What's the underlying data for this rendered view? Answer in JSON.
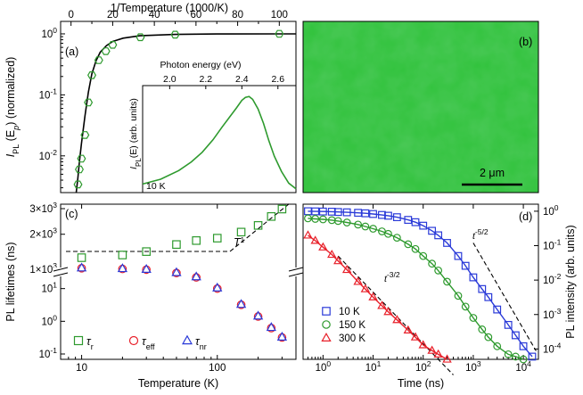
{
  "colors": {
    "green": "#2e9a2e",
    "blue": "#2a3ad8",
    "red": "#e8202a",
    "purple": "#7a30c0",
    "black": "#000000",
    "image_green": "#2fc23a"
  },
  "chart_data": [
    {
      "panel": "(a)",
      "type": "scatter",
      "xlabel": "1/Temperature (1000/K)",
      "ylabel_main": "I",
      "ylabel_sub": "PL",
      "ylabel_rest": " (E",
      "ylabel_sub2": "p",
      "ylabel_end": ") (normalized)",
      "xlim": [
        -5,
        108
      ],
      "ylim": [
        0.0025,
        1.6
      ],
      "yscale": "log",
      "xticks": [
        "0",
        "20",
        "40",
        "60",
        "80",
        "100"
      ],
      "yticks": [
        "10-2",
        "10-1",
        "100"
      ],
      "series": [
        {
          "marker": "hexagon",
          "x": [
            3.33,
            4.0,
            5.0,
            6.67,
            8.33,
            10.0,
            13.3,
            16.7,
            20.0,
            33.3,
            50.0,
            100.0
          ],
          "y": [
            0.0034,
            0.006,
            0.009,
            0.022,
            0.075,
            0.21,
            0.37,
            0.52,
            0.66,
            0.88,
            0.97,
            1.0
          ]
        }
      ],
      "fit": {
        "x": [
          2.5,
          3.3,
          4.0,
          5.0,
          6.7,
          8.3,
          10,
          12,
          14,
          17,
          20,
          25,
          33,
          50,
          70,
          100,
          108
        ],
        "y": [
          0.0025,
          0.0044,
          0.0078,
          0.016,
          0.045,
          0.11,
          0.22,
          0.36,
          0.5,
          0.64,
          0.75,
          0.85,
          0.93,
          0.98,
          0.995,
          1.0,
          1.0
        ]
      },
      "inset": {
        "xlabel": "Photon energy (eV)",
        "ylabel": "I",
        "ylabel_sub": "PL",
        "ylabel_rest": "(E) (arb. units)",
        "note": "10 K",
        "xlim": [
          1.85,
          2.7
        ],
        "xticks": [
          "2.0",
          "2.2",
          "2.4",
          "2.6"
        ],
        "spectrum_x": [
          1.85,
          1.95,
          2.05,
          2.12,
          2.18,
          2.24,
          2.29,
          2.33,
          2.37,
          2.4,
          2.42,
          2.44,
          2.46,
          2.49,
          2.52,
          2.55,
          2.58,
          2.62,
          2.66,
          2.7
        ],
        "spectrum_y": [
          0.07,
          0.12,
          0.21,
          0.3,
          0.4,
          0.53,
          0.66,
          0.76,
          0.86,
          0.94,
          0.97,
          0.98,
          0.95,
          0.85,
          0.7,
          0.52,
          0.36,
          0.2,
          0.08,
          0.02
        ]
      }
    },
    {
      "panel": "(b)",
      "type": "image",
      "scalebar": "2 μm"
    },
    {
      "panel": "(c)",
      "type": "scatter",
      "xlabel": "Temperature (K)",
      "ylabel": "PL lifetimes (ns)",
      "xscale": "log",
      "xlim": [
        7,
        380
      ],
      "xticks": [
        "10",
        "100"
      ],
      "upper_yticks": [
        "1×10",
        "2×10",
        "3×10"
      ],
      "upper_yticks_exp": "3",
      "lower_yticks": [
        "10-1",
        "100",
        "101"
      ],
      "annotation": "T",
      "annotation_exp": "1",
      "series": [
        {
          "name": "τr",
          "label": "τ",
          "label_sub": "r",
          "marker": "square",
          "x": [
            10,
            20,
            30,
            50,
            70,
            100,
            150,
            200,
            250,
            300
          ],
          "y": [
            1380,
            1440,
            1520,
            1700,
            1810,
            1880,
            2070,
            2300,
            2650,
            2980
          ]
        },
        {
          "name": "τeff",
          "label": "τ",
          "label_sub": "eff",
          "marker": "circle",
          "x": [
            10,
            20,
            30,
            50,
            70,
            100,
            150,
            200,
            250,
            300
          ],
          "y": [
            42,
            40,
            38,
            30,
            22,
            10,
            3.2,
            1.4,
            0.62,
            0.32
          ]
        },
        {
          "name": "τnr",
          "label": "τ",
          "label_sub": "nr",
          "marker": "triangle",
          "x": [
            10,
            20,
            30,
            50,
            70,
            100,
            150,
            200,
            250,
            300
          ],
          "y": [
            43,
            41,
            39,
            31,
            23,
            10.5,
            3.3,
            1.45,
            0.65,
            0.33
          ]
        }
      ]
    },
    {
      "panel": "(d)",
      "type": "scatter",
      "xlabel": "Time (ns)",
      "ylabel": "PL intensity (arb. units)",
      "xscale": "log",
      "yscale": "log",
      "xlim": [
        0.4,
        20000
      ],
      "ylim": [
        5e-05,
        1.6
      ],
      "xticks": [
        "100",
        "101",
        "102",
        "103",
        "104"
      ],
      "yticks": [
        "10-4",
        "10-3",
        "10-2",
        "10-1",
        "100"
      ],
      "power_laws": [
        {
          "label": "t",
          "exp": "-5/2"
        },
        {
          "label": "t",
          "exp": "-3/2"
        }
      ],
      "series": [
        {
          "name": "10 K",
          "marker": "square",
          "x": [
            0.5,
            0.7,
            1,
            1.5,
            2,
            3,
            5,
            7,
            10,
            15,
            20,
            30,
            50,
            70,
            100,
            150,
            200,
            300,
            500,
            700,
            1000,
            1500,
            2000,
            3000,
            5000,
            7000,
            10000,
            15000
          ],
          "y": [
            1.0,
            0.99,
            0.98,
            0.97,
            0.95,
            0.93,
            0.9,
            0.87,
            0.83,
            0.78,
            0.74,
            0.67,
            0.56,
            0.48,
            0.38,
            0.27,
            0.2,
            0.12,
            0.05,
            0.026,
            0.012,
            0.0055,
            0.0032,
            0.0014,
            0.0005,
            0.00025,
            0.00012,
            6e-05
          ]
        },
        {
          "name": "150 K",
          "marker": "circle",
          "x": [
            0.5,
            0.7,
            1,
            1.5,
            2,
            3,
            5,
            7,
            10,
            15,
            20,
            30,
            50,
            70,
            100,
            150,
            200,
            300,
            500,
            700,
            1000,
            1500,
            2000,
            3000,
            5000,
            7000,
            10000
          ],
          "y": [
            0.62,
            0.6,
            0.58,
            0.55,
            0.52,
            0.47,
            0.41,
            0.36,
            0.31,
            0.26,
            0.22,
            0.17,
            0.11,
            0.08,
            0.05,
            0.03,
            0.019,
            0.009,
            0.0035,
            0.0017,
            0.0008,
            0.00037,
            0.00022,
            0.00012,
            7e-05,
            6e-05,
            5e-05
          ]
        },
        {
          "name": "300 K",
          "marker": "triangle",
          "x": [
            0.5,
            0.7,
            1,
            1.5,
            2,
            3,
            5,
            7,
            10,
            15,
            20,
            30,
            50,
            70,
            100,
            150,
            200,
            300
          ],
          "y": [
            0.2,
            0.14,
            0.09,
            0.055,
            0.036,
            0.02,
            0.009,
            0.0055,
            0.0032,
            0.0018,
            0.0012,
            0.0007,
            0.00035,
            0.00022,
            0.00013,
            9e-05,
            7e-05,
            5e-05
          ]
        }
      ]
    }
  ]
}
